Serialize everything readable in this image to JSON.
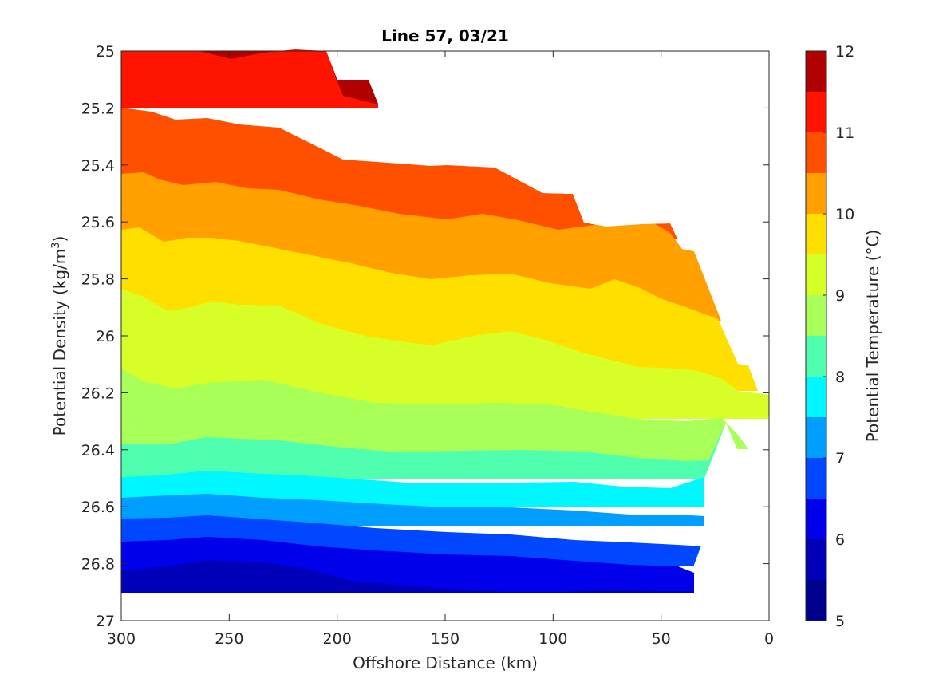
{
  "chart_data": {
    "type": "contour",
    "title": "Line 57, 03/21",
    "xlabel": "Offshore Distance (km)",
    "ylabel_main": "Potential Density (kg/m",
    "ylabel_sup": "3",
    "ylabel_close": ")",
    "xlim": [
      300,
      0
    ],
    "x_reversed": true,
    "ylim": [
      25,
      27
    ],
    "y_reversed": true,
    "x_ticks": [
      "300",
      "250",
      "200",
      "150",
      "100",
      "50",
      "0"
    ],
    "y_ticks": [
      "25",
      "25.2",
      "25.4",
      "25.6",
      "25.8",
      "26",
      "26.2",
      "26.4",
      "26.6",
      "26.8",
      "27"
    ],
    "colorbar": {
      "label": "Potential Temperature (°C)",
      "range": [
        5,
        12
      ],
      "step": 0.5,
      "ticks": [
        "5",
        "6",
        "7",
        "8",
        "9",
        "10",
        "11",
        "12"
      ],
      "colors": [
        "#00008f",
        "#0000ea",
        "#0047ff",
        "#009fff",
        "#00f7ff",
        "#4fffaf",
        "#a7ff57",
        "#ffff00",
        "#ffa800",
        "#ff5000",
        "#f80000",
        "#a00000",
        "#d9d9d9",
        "#ff1400"
      ]
    },
    "contour_levels": [
      {
        "temp_range": "5.5-6",
        "color": "#0000b8",
        "x": [
          300,
          270,
          255,
          230,
          200,
          150,
          120,
          80,
          35
        ],
        "density": [
          26.89,
          26.89,
          26.88,
          26.89,
          26.89,
          26.89,
          26.9,
          26.9,
          26.9
        ]
      },
      {
        "temp_range": "6-6.5",
        "color": "#0000ea",
        "x": [
          300,
          270,
          255,
          230,
          200,
          150,
          120,
          80,
          35
        ],
        "density": [
          26.82,
          26.8,
          26.78,
          26.79,
          26.83,
          26.87,
          26.87,
          26.87,
          26.86
        ]
      },
      {
        "temp_range": "6.5-7",
        "color": "#0047ff",
        "x": [
          300,
          270,
          255,
          230,
          200,
          150,
          120,
          80,
          35
        ],
        "density": [
          26.72,
          26.72,
          26.7,
          26.72,
          26.73,
          26.78,
          26.78,
          26.8,
          26.8
        ]
      },
      {
        "temp_range": "7-7.5",
        "color": "#009fff",
        "x": [
          300,
          270,
          255,
          230,
          200,
          150,
          120,
          80,
          35
        ],
        "density": [
          26.64,
          26.64,
          26.63,
          26.64,
          26.66,
          26.68,
          26.7,
          26.72,
          26.72
        ]
      },
      {
        "temp_range": "7.5-8",
        "color": "#00f7ff",
        "x": [
          300,
          270,
          255,
          230,
          200,
          150,
          120,
          80,
          35
        ],
        "density": [
          26.57,
          26.56,
          26.55,
          26.57,
          26.58,
          26.6,
          26.61,
          26.64,
          26.65
        ]
      },
      {
        "temp_range": "8-8.5",
        "color": "#4fffaf",
        "x": [
          300,
          270,
          255,
          230,
          200,
          150,
          120,
          80,
          35
        ],
        "density": [
          26.5,
          26.49,
          26.48,
          26.5,
          26.5,
          26.52,
          26.53,
          26.56,
          26.56
        ]
      },
      {
        "temp_range": "8.5-9",
        "color": "#a7ff57",
        "x": [
          300,
          270,
          255,
          230,
          200,
          150,
          120,
          80,
          35
        ],
        "density": [
          26.38,
          26.36,
          26.35,
          26.38,
          26.4,
          26.42,
          26.42,
          26.44,
          26.46
        ]
      },
      {
        "temp_range": "9-9.5",
        "color": "#d7ff27",
        "x": [
          300,
          270,
          255,
          230,
          200,
          150,
          120,
          80,
          35,
          20,
          10,
          0
        ],
        "density": [
          26.12,
          26.18,
          26.16,
          26.15,
          26.2,
          26.23,
          26.23,
          26.26,
          26.3,
          26.33,
          26.35,
          26.3
        ]
      },
      {
        "temp_range": "9.5-10",
        "color": "#ffdf00",
        "x": [
          300,
          270,
          255,
          230,
          200,
          150,
          120,
          80,
          35,
          20,
          10,
          0
        ],
        "density": [
          25.82,
          25.88,
          25.88,
          25.9,
          25.97,
          26.03,
          26.0,
          26.07,
          26.12,
          26.15,
          26.2,
          26.2
        ]
      },
      {
        "temp_range": "10-10.5",
        "color": "#ff9f00",
        "x": [
          300,
          270,
          255,
          230,
          200,
          150,
          120,
          80,
          50,
          35
        ],
        "density": [
          25.6,
          25.66,
          25.64,
          25.66,
          25.72,
          25.79,
          25.75,
          25.8,
          25.85,
          25.93
        ]
      },
      {
        "temp_range": "10.5-11",
        "color": "#ff5000",
        "x": [
          300,
          270,
          255,
          230,
          200,
          150,
          120,
          80,
          45
        ],
        "density": [
          25.43,
          25.46,
          25.45,
          25.48,
          25.52,
          25.59,
          25.57,
          25.6,
          25.6
        ]
      },
      {
        "temp_range": "11-11.5",
        "color": "#ff1400",
        "x": [
          300,
          270,
          255,
          230,
          200,
          160
        ],
        "density": [
          25.2,
          25.24,
          25.24,
          25.26,
          25.35,
          25.4
        ]
      },
      {
        "temp_range": "11.5-12",
        "color": "#b00000",
        "x": [
          255,
          230,
          210,
          185
        ],
        "density": [
          25.0,
          25.01,
          25.0,
          25.18
        ]
      }
    ]
  }
}
